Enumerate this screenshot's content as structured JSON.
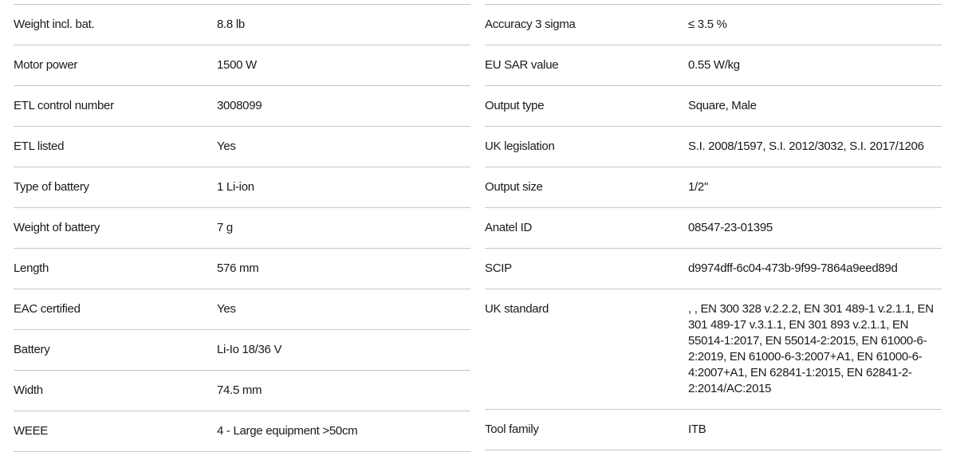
{
  "page": {
    "background_color": "#ffffff",
    "text_color": "#1a1a1a",
    "divider_color": "#c7c7c7"
  },
  "spec_table": {
    "columns": [
      {
        "rows": [
          {
            "label": "Weight incl. bat.",
            "value": "8.8 lb"
          },
          {
            "label": "Motor power",
            "value": "1500 W"
          },
          {
            "label": "ETL control number",
            "value": "3008099"
          },
          {
            "label": "ETL listed",
            "value": "Yes"
          },
          {
            "label": "Type of battery",
            "value": "1 Li-ion"
          },
          {
            "label": "Weight of battery",
            "value": "7 g"
          },
          {
            "label": "Length",
            "value": "576 mm"
          },
          {
            "label": "EAC certified",
            "value": "Yes"
          },
          {
            "label": "Battery",
            "value": "Li-Io 18/36 V"
          },
          {
            "label": "Width",
            "value": "74.5 mm"
          },
          {
            "label": "WEEE",
            "value": "4 - Large equipment >50cm"
          }
        ]
      },
      {
        "rows": [
          {
            "label": "Accuracy 3 sigma",
            "value": "≤ 3.5 %"
          },
          {
            "label": "EU SAR value",
            "value": "0.55 W/kg"
          },
          {
            "label": "Output type",
            "value": "Square, Male"
          },
          {
            "label": "UK legislation",
            "value": "S.I. 2008/1597, S.I. 2012/3032, S.I. 2017/1206"
          },
          {
            "label": "Output size",
            "value": "1/2\""
          },
          {
            "label": "Anatel ID",
            "value": "08547-23-01395"
          },
          {
            "label": "SCIP",
            "value": "d9974dff-6c04-473b-9f99-7864a9eed89d"
          },
          {
            "label": "UK standard",
            "value": ", , EN 300 328 v.2.2.2, EN 301 489-1 v.2.1.1, EN 301 489-17 v.3.1.1, EN 301 893 v.2.1.1, EN 55014-1:2017, EN 55014-2:2015, EN 61000-6-2:2019, EN 61000-6-3:2007+A1, EN 61000-6-4:2007+A1, EN 62841-1:2015, EN 62841-2-2:2014/AC:2015"
          },
          {
            "label": "Tool family",
            "value": "ITB"
          }
        ]
      }
    ]
  }
}
